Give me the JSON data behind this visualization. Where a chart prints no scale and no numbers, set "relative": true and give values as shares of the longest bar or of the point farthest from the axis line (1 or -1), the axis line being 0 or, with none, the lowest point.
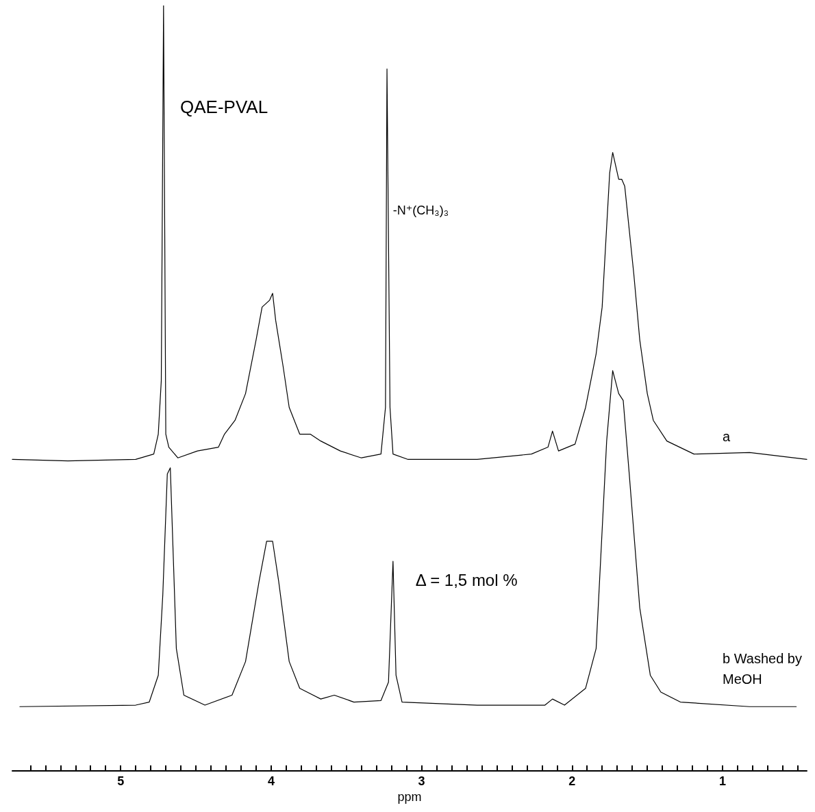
{
  "chart_data": {
    "type": "line",
    "title": "QAE-PVAL",
    "xlabel": "ppm",
    "relative": true,
    "tick_labels": "x",
    "marker": "none",
    "line_style": "solid",
    "xlim": [
      5.72,
      0.44
    ],
    "xticks": [
      5,
      4,
      3,
      2,
      1,
      {
        "value": 5.6,
        "label": null
      },
      {
        "value": 5.5,
        "label": null
      },
      {
        "value": 5.4,
        "label": null
      },
      {
        "value": 5.3,
        "label": null
      },
      {
        "value": 5.2,
        "label": null
      },
      {
        "value": 5.1,
        "label": null
      },
      {
        "value": 4.9,
        "label": null
      },
      {
        "value": 4.8,
        "label": null
      },
      {
        "value": 4.7,
        "label": null
      },
      {
        "value": 4.6,
        "label": null
      },
      {
        "value": 4.5,
        "label": null
      },
      {
        "value": 4.4,
        "label": null
      },
      {
        "value": 4.3,
        "label": null
      },
      {
        "value": 4.2,
        "label": null
      },
      {
        "value": 4.1,
        "label": null
      },
      {
        "value": 3.9,
        "label": null
      },
      {
        "value": 3.8,
        "label": null
      },
      {
        "value": 3.7,
        "label": null
      },
      {
        "value": 3.6,
        "label": null
      },
      {
        "value": 3.5,
        "label": null
      },
      {
        "value": 3.4,
        "label": null
      },
      {
        "value": 3.3,
        "label": null
      },
      {
        "value": 3.2,
        "label": null
      },
      {
        "value": 3.1,
        "label": null
      },
      {
        "value": 2.9,
        "label": null
      },
      {
        "value": 2.8,
        "label": null
      },
      {
        "value": 2.7,
        "label": null
      },
      {
        "value": 2.6,
        "label": null
      },
      {
        "value": 2.5,
        "label": null
      },
      {
        "value": 2.4,
        "label": null
      },
      {
        "value": 2.3,
        "label": null
      },
      {
        "value": 2.2,
        "label": null
      },
      {
        "value": 2.1,
        "label": null
      },
      {
        "value": 1.9,
        "label": null
      },
      {
        "value": 1.8,
        "label": null
      },
      {
        "value": 1.7,
        "label": null
      },
      {
        "value": 1.6,
        "label": null
      },
      {
        "value": 1.5,
        "label": null
      },
      {
        "value": 1.4,
        "label": null
      },
      {
        "value": 1.3,
        "label": null
      },
      {
        "value": 1.2,
        "label": null
      },
      {
        "value": 1.1,
        "label": null
      },
      {
        "value": 0.9,
        "label": null
      },
      {
        "value": 0.8,
        "label": null
      },
      {
        "value": 0.7,
        "label": null
      },
      {
        "value": 0.6,
        "label": null
      },
      {
        "value": 0.5,
        "label": null
      }
    ],
    "annotations": [
      "Δ = 1,5 mol %",
      "-N⁺(CH₃)₃"
    ],
    "series": [
      {
        "name": "a",
        "color": "#000000",
        "x": [
          5.72,
          5.35,
          4.9,
          4.78,
          4.75,
          4.73,
          4.715,
          4.7,
          4.68,
          4.62,
          4.49,
          4.35,
          4.31,
          4.24,
          4.17,
          4.1,
          4.06,
          4.01,
          3.99,
          3.97,
          3.92,
          3.88,
          3.81,
          3.74,
          3.67,
          3.54,
          3.4,
          3.27,
          3.24,
          3.23,
          3.21,
          3.19,
          3.09,
          2.63,
          2.27,
          2.16,
          2.13,
          2.09,
          1.98,
          1.91,
          1.84,
          1.8,
          1.75,
          1.73,
          1.69,
          1.67,
          1.65,
          1.59,
          1.55,
          1.5,
          1.46,
          1.37,
          1.19,
          0.82,
          0.44
        ],
        "values": [
          0.407,
          0.405,
          0.407,
          0.414,
          0.44,
          0.51,
          1.0,
          0.44,
          0.423,
          0.409,
          0.418,
          0.423,
          0.44,
          0.458,
          0.493,
          0.563,
          0.606,
          0.615,
          0.624,
          0.589,
          0.528,
          0.475,
          0.44,
          0.44,
          0.431,
          0.418,
          0.409,
          0.414,
          0.475,
          0.917,
          0.475,
          0.414,
          0.407,
          0.407,
          0.414,
          0.423,
          0.444,
          0.418,
          0.427,
          0.475,
          0.545,
          0.606,
          0.781,
          0.808,
          0.773,
          0.773,
          0.764,
          0.65,
          0.563,
          0.493,
          0.458,
          0.431,
          0.414,
          0.416,
          0.407
        ]
      },
      {
        "name": "b Washed by MeOH",
        "color": "#000000",
        "x": [
          5.67,
          4.9,
          4.81,
          4.75,
          4.72,
          4.69,
          4.67,
          4.63,
          4.58,
          4.44,
          4.26,
          4.17,
          4.08,
          4.03,
          3.99,
          3.95,
          3.88,
          3.81,
          3.67,
          3.58,
          3.45,
          3.27,
          3.22,
          3.19,
          3.17,
          3.13,
          2.63,
          2.18,
          2.13,
          2.05,
          1.91,
          1.84,
          1.77,
          1.73,
          1.69,
          1.66,
          1.62,
          1.55,
          1.48,
          1.41,
          1.28,
          0.82,
          0.51
        ],
        "values": [
          0.084,
          0.086,
          0.09,
          0.125,
          0.23,
          0.388,
          0.396,
          0.16,
          0.099,
          0.086,
          0.099,
          0.143,
          0.248,
          0.3,
          0.3,
          0.248,
          0.143,
          0.108,
          0.094,
          0.099,
          0.09,
          0.092,
          0.116,
          0.274,
          0.125,
          0.09,
          0.086,
          0.086,
          0.094,
          0.086,
          0.108,
          0.16,
          0.431,
          0.523,
          0.493,
          0.484,
          0.388,
          0.213,
          0.125,
          0.103,
          0.09,
          0.084,
          0.084
        ]
      }
    ]
  }
}
